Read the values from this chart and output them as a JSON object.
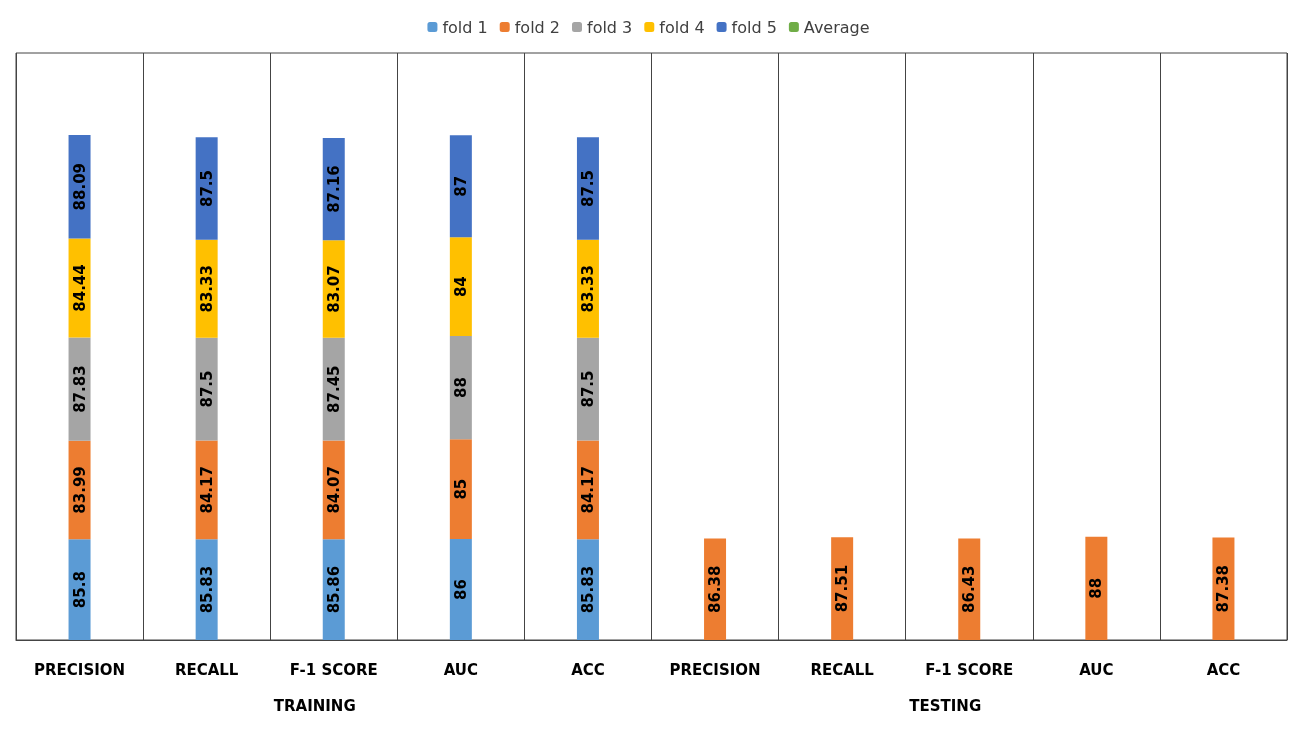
{
  "chart_data": {
    "type": "bar",
    "stacked": true,
    "data_labels": true,
    "legend": "top",
    "grid": "x",
    "categories": [
      "PRECISION",
      "RECALL",
      "F-1 SCORE",
      "AUC",
      "ACC",
      "PRECISION",
      "RECALL",
      "F-1 SCORE",
      "AUC",
      "ACC"
    ],
    "series": [
      {
        "name": "fold 1",
        "color": "#5b9bd5",
        "values": [
          85.8,
          85.83,
          85.86,
          86,
          85.83,
          null,
          null,
          null,
          null,
          null
        ]
      },
      {
        "name": "fold 2",
        "color": "#ed7d31",
        "values": [
          83.99,
          84.17,
          84.07,
          85,
          84.17,
          86.38,
          87.51,
          86.43,
          88,
          87.38
        ]
      },
      {
        "name": "fold 3",
        "color": "#a5a5a5",
        "values": [
          87.83,
          87.5,
          87.45,
          88,
          87.5,
          null,
          null,
          null,
          null,
          null
        ]
      },
      {
        "name": "fold 4",
        "color": "#ffc000",
        "values": [
          84.44,
          83.33,
          83.07,
          84,
          83.33,
          null,
          null,
          null,
          null,
          null
        ]
      },
      {
        "name": "fold 5",
        "color": "#4472c4",
        "values": [
          88.09,
          87.5,
          87.16,
          87,
          87.5,
          null,
          null,
          null,
          null,
          null
        ]
      },
      {
        "name": "Average",
        "color": "#70ad47",
        "values": [
          null,
          null,
          null,
          null,
          null,
          null,
          null,
          null,
          null,
          null
        ]
      }
    ],
    "annotations": [
      "TRAINING",
      "TESTING"
    ]
  }
}
